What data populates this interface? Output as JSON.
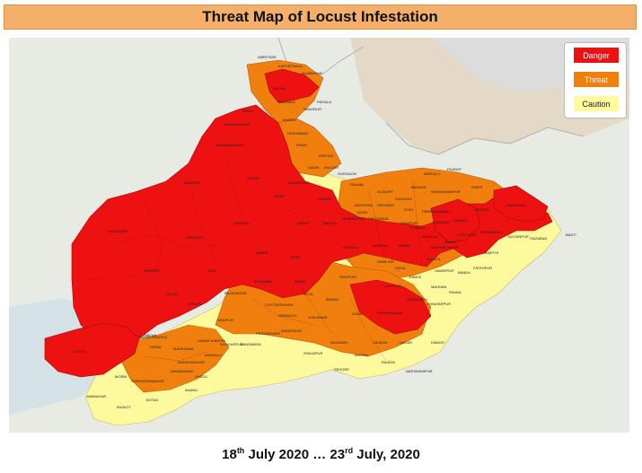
{
  "title": "Threat Map of Locust Infestation",
  "legend": [
    {
      "label": "Danger",
      "color": "#ee1111"
    },
    {
      "label": "Threat",
      "color": "#f07f0e"
    },
    {
      "label": "Caution",
      "color": "#fdfa9e"
    }
  ],
  "date_range": {
    "start_day": "18",
    "start_suffix": "th",
    "start_rest": "July 2020",
    "separator": "…",
    "end_day": "23",
    "end_suffix": "rd",
    "end_rest": "July, 2020"
  },
  "places": [
    "AMRITSAR",
    "KAPURTHALA",
    "JALANDHAR",
    "MOGA",
    "BARNALA",
    "SANGRUR",
    "PATIALA",
    "MANSA",
    "FATEHABAD",
    "HISAR",
    "ROHTAK",
    "DADRI",
    "JHAJJAR",
    "SIRSA",
    "GANGANAGAR",
    "HANUMANGARH",
    "BIKANER",
    "CHURU",
    "JHUNJHUNU",
    "SIKAR",
    "NAGAUR",
    "JAISALMER",
    "JODHPUR",
    "BARMER",
    "JALOR",
    "SIROHI",
    "PALI",
    "AJMER",
    "JAIPUR",
    "ALWAR",
    "BHARATPUR",
    "DAUSA",
    "TONK",
    "BUNDI",
    "KOTA",
    "BARAN",
    "JHALAWAR",
    "CHITTAURGARH",
    "BHILWARA",
    "RAJSAMAND",
    "UDAIPUR",
    "DUNGARPUR",
    "BANSWARA",
    "PRATAPGARH",
    "NEEMUCH",
    "MANDSAUR",
    "RAJGARH",
    "SHAJAPUR",
    "BHOPAL",
    "RAISEN",
    "VIDISHA",
    "SAGAR",
    "DAMOH",
    "SEHORE",
    "NARSIMHAPUR",
    "GUNA",
    "ASHOKNAGAR",
    "SHIVPURI",
    "MORENA",
    "BHIND",
    "GWALIOR",
    "DATIA",
    "JHANSI",
    "LALITPUR",
    "TIKAMGARH",
    "CHHATARPUR",
    "PANNA",
    "MAHOBA",
    "HAMIRPUR",
    "BANDA",
    "JALAUN",
    "ETAWAH",
    "AURAIYA",
    "KANPUR DEHAT",
    "FATEHPUR",
    "LUCKNOW",
    "UNNAO",
    "RAE BARELI",
    "AMETHI",
    "SULTANPUR",
    "FAIZABAD",
    "BASTI",
    "BAHRAICH",
    "SITAPUR",
    "KHERI",
    "BAREILLY",
    "PILIBHIT",
    "SHAHJAHANPUR",
    "BADAUN",
    "ALIGARH",
    "MATHURA",
    "HATHRAS",
    "ETAH",
    "FIROZABAD",
    "AGRA",
    "KASGANJ",
    "FARRUKHABAD",
    "KANNAUJ",
    "MAINPURI",
    "HARDOI",
    "KUTCH",
    "BANAS KANTHA",
    "PATAN",
    "MAHESANA",
    "GANDHINAGAR",
    "AHMADABAD",
    "KHEDA",
    "ANAND",
    "SABAR KANTHA",
    "ARAVALLI",
    "SURENDRANAGAR",
    "MORBI",
    "RAJKOT",
    "JAMNAGAR",
    "BOTAD",
    "PALWAL",
    "SIROHI",
    "KARAULI",
    "GURGAON"
  ]
}
